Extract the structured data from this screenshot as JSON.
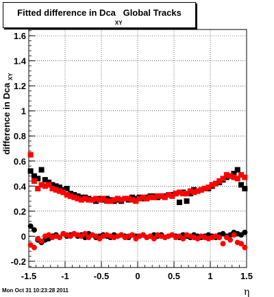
{
  "title": {
    "main": "Fitted difference in Dca",
    "subscript": "XY",
    "suffix": "Global Tracks"
  },
  "timestamp": "Mon Oct 31 10:23:28 2011",
  "chart_data": {
    "type": "scatter",
    "xlabel": "η",
    "ylabel_main": "difference in Dca",
    "ylabel_subscript": "XY",
    "xlim": [
      -1.5,
      1.5
    ],
    "ylim": [
      -0.25,
      1.65
    ],
    "x_ticks": [
      -1.5,
      -1,
      -0.5,
      0,
      0.5,
      1,
      1.5
    ],
    "x_tick_labels": [
      "-1.5",
      "-1",
      "-0.5",
      "0",
      "0.5",
      "1",
      "1.5"
    ],
    "y_ticks": [
      -0.2,
      0,
      0.2,
      0.4,
      0.6,
      0.8,
      1,
      1.2,
      1.4,
      1.6
    ],
    "y_tick_labels": [
      "-0.2",
      "0",
      "0.2",
      "0.4",
      "0.6",
      "0.8",
      "1",
      "1.2",
      "1.4",
      "1.6"
    ],
    "grid": true,
    "series": [
      {
        "marker": "square",
        "color": "#000000",
        "x": [
          -1.475,
          -1.425,
          -1.375,
          -1.325,
          -1.275,
          -1.225,
          -1.175,
          -1.125,
          -1.075,
          -1.025,
          -0.975,
          -0.925,
          -0.875,
          -0.825,
          -0.775,
          -0.725,
          -0.675,
          -0.625,
          -0.575,
          -0.525,
          -0.475,
          -0.425,
          -0.375,
          -0.325,
          -0.275,
          -0.225,
          -0.175,
          -0.125,
          -0.075,
          -0.025,
          0.025,
          0.075,
          0.125,
          0.175,
          0.225,
          0.275,
          0.325,
          0.375,
          0.425,
          0.475,
          0.525,
          0.575,
          0.625,
          0.675,
          0.725,
          0.775,
          0.825,
          0.875,
          0.925,
          0.975,
          1.025,
          1.075,
          1.125,
          1.175,
          1.225,
          1.275,
          1.325,
          1.375,
          1.425,
          1.475
        ],
        "y": [
          0.52,
          0.48,
          0.46,
          0.53,
          0.45,
          0.43,
          0.41,
          0.4,
          0.39,
          0.37,
          0.38,
          0.34,
          0.33,
          0.32,
          0.31,
          0.31,
          0.3,
          0.29,
          0.28,
          0.3,
          0.29,
          0.3,
          0.29,
          0.28,
          0.29,
          0.28,
          0.3,
          0.29,
          0.31,
          0.3,
          0.31,
          0.3,
          0.31,
          0.32,
          0.32,
          0.31,
          0.32,
          0.32,
          0.33,
          0.33,
          0.34,
          0.27,
          0.35,
          0.28,
          0.34,
          0.37,
          0.36,
          0.37,
          0.38,
          0.38,
          0.4,
          0.42,
          0.43,
          0.45,
          0.47,
          0.48,
          0.5,
          0.53,
          0.41,
          0.38
        ]
      },
      {
        "marker": "square",
        "color": "#ff0000",
        "x": [
          -1.475,
          -1.425,
          -1.375,
          -1.325,
          -1.275,
          -1.225,
          -1.175,
          -1.125,
          -1.075,
          -1.025,
          -0.975,
          -0.925,
          -0.875,
          -0.825,
          -0.775,
          -0.725,
          -0.675,
          -0.625,
          -0.575,
          -0.525,
          -0.475,
          -0.425,
          -0.375,
          -0.325,
          -0.275,
          -0.225,
          -0.175,
          -0.125,
          -0.075,
          -0.025,
          0.025,
          0.075,
          0.125,
          0.175,
          0.225,
          0.275,
          0.325,
          0.375,
          0.425,
          0.475,
          0.525,
          0.575,
          0.625,
          0.675,
          0.725,
          0.775,
          0.825,
          0.875,
          0.925,
          0.975,
          1.025,
          1.075,
          1.125,
          1.175,
          1.225,
          1.275,
          1.325,
          1.375,
          1.425,
          1.475
        ],
        "y": [
          0.65,
          0.44,
          0.38,
          0.41,
          0.4,
          0.41,
          0.38,
          0.37,
          0.36,
          0.35,
          0.33,
          0.32,
          0.31,
          0.3,
          0.29,
          0.3,
          0.29,
          0.29,
          0.3,
          0.29,
          0.3,
          0.28,
          0.28,
          0.29,
          0.3,
          0.29,
          0.3,
          0.3,
          0.29,
          0.28,
          0.3,
          0.31,
          0.3,
          0.31,
          0.31,
          0.32,
          0.32,
          0.31,
          0.33,
          0.32,
          0.34,
          0.35,
          0.34,
          0.34,
          0.36,
          0.35,
          0.36,
          0.37,
          0.38,
          0.39,
          0.41,
          0.42,
          0.44,
          0.46,
          0.49,
          0.48,
          0.47,
          0.46,
          0.49,
          0.47
        ]
      },
      {
        "marker": "circle",
        "color": "#000000",
        "x": [
          -1.475,
          -1.425,
          -1.375,
          -1.325,
          -1.275,
          -1.225,
          -1.175,
          -1.125,
          -1.075,
          -1.025,
          -0.975,
          -0.925,
          -0.875,
          -0.825,
          -0.775,
          -0.725,
          -0.675,
          -0.625,
          -0.575,
          -0.525,
          -0.475,
          -0.425,
          -0.375,
          -0.325,
          -0.275,
          -0.225,
          -0.175,
          -0.125,
          -0.075,
          -0.025,
          0.025,
          0.075,
          0.125,
          0.175,
          0.225,
          0.275,
          0.325,
          0.375,
          0.425,
          0.475,
          0.525,
          0.575,
          0.625,
          0.675,
          0.725,
          0.775,
          0.825,
          0.875,
          0.925,
          0.975,
          1.025,
          1.075,
          1.125,
          1.175,
          1.225,
          1.275,
          1.325,
          1.375,
          1.425,
          1.475
        ],
        "y": [
          0.08,
          0.05,
          -0.03,
          -0.05,
          -0.03,
          -0.02,
          0.0,
          0.01,
          -0.01,
          0.02,
          0.0,
          0.01,
          0.02,
          0.0,
          0.01,
          -0.01,
          0.02,
          0.01,
          -0.01,
          0.0,
          0.01,
          0.0,
          -0.01,
          0.01,
          0.0,
          0.01,
          0.0,
          -0.01,
          0.01,
          0.0,
          0.0,
          0.01,
          -0.01,
          0.0,
          0.01,
          0.0,
          0.01,
          -0.01,
          0.0,
          0.01,
          0.0,
          -0.01,
          0.01,
          0.0,
          -0.01,
          0.01,
          0.0,
          -0.01,
          0.0,
          0.01,
          0.0,
          -0.01,
          0.01,
          0.02,
          0.0,
          0.01,
          0.03,
          0.02,
          0.01,
          0.03
        ]
      },
      {
        "marker": "circle",
        "color": "#ff0000",
        "x": [
          -1.475,
          -1.425,
          -1.375,
          -1.325,
          -1.275,
          -1.225,
          -1.175,
          -1.125,
          -1.075,
          -1.025,
          -0.975,
          -0.925,
          -0.875,
          -0.825,
          -0.775,
          -0.725,
          -0.675,
          -0.625,
          -0.575,
          -0.525,
          -0.475,
          -0.425,
          -0.375,
          -0.325,
          -0.275,
          -0.225,
          -0.175,
          -0.125,
          -0.075,
          -0.025,
          0.025,
          0.075,
          0.125,
          0.175,
          0.225,
          0.275,
          0.325,
          0.375,
          0.425,
          0.475,
          0.525,
          0.575,
          0.625,
          0.675,
          0.725,
          0.775,
          0.825,
          0.875,
          0.925,
          0.975,
          1.025,
          1.075,
          1.125,
          1.175,
          1.225,
          1.275,
          1.325,
          1.375,
          1.425,
          1.475
        ],
        "y": [
          -0.07,
          -0.09,
          -0.02,
          -0.04,
          0.0,
          0.01,
          -0.01,
          0.0,
          -0.01,
          0.02,
          0.01,
          0.0,
          0.02,
          0.01,
          0.0,
          0.02,
          -0.01,
          0.01,
          0.0,
          -0.02,
          0.0,
          0.01,
          0.0,
          -0.01,
          0.0,
          0.01,
          -0.01,
          0.0,
          0.01,
          -0.02,
          0.0,
          0.01,
          -0.01,
          0.0,
          -0.02,
          0.01,
          0.0,
          -0.01,
          0.0,
          0.01,
          -0.01,
          0.0,
          -0.02,
          0.01,
          0.0,
          -0.01,
          -0.02,
          0.0,
          -0.01,
          -0.02,
          -0.01,
          0.0,
          -0.01,
          -0.06,
          -0.01,
          -0.03,
          0.01,
          -0.05,
          -0.06,
          -0.09
        ]
      }
    ]
  }
}
